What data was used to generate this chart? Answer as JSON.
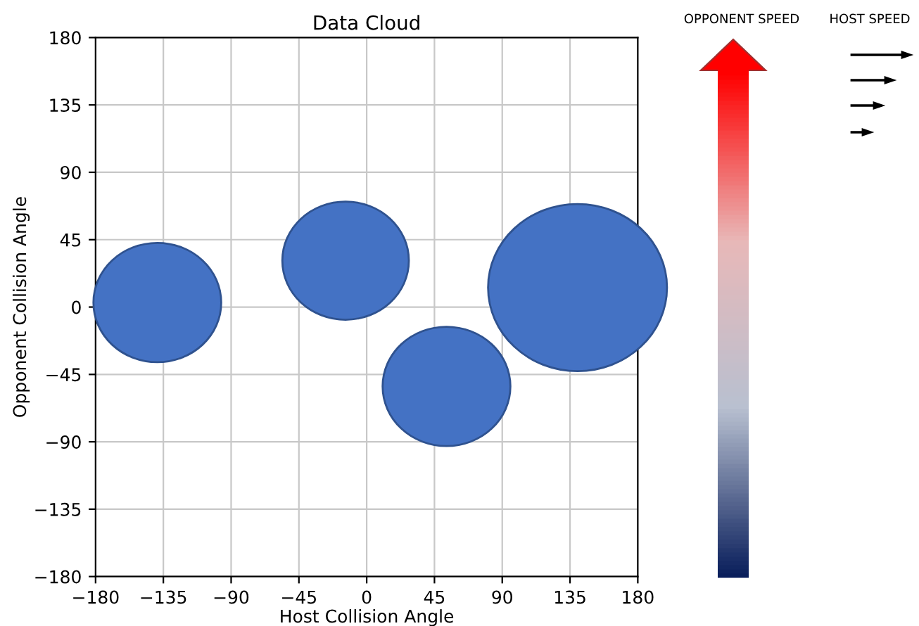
{
  "chart_data": {
    "type": "bubble",
    "title": "Data Cloud",
    "xlabel": "Host Collision Angle",
    "ylabel": "Opponent Collision Angle",
    "x": [
      -139,
      -14,
      53,
      140
    ],
    "series": [
      {
        "color": "#4472c4",
        "values": [
          3,
          31,
          -53,
          13
        ],
        "sizes": [
          0.51,
          0.5,
          0.51,
          1
        ]
      }
    ],
    "xlim": [
      -180,
      180
    ],
    "ylim": [
      -180,
      180
    ],
    "xticks": [
      -180,
      -135,
      -90,
      -45,
      0,
      45,
      90,
      135,
      180
    ],
    "yticks": [
      -180,
      -135,
      -90,
      -45,
      0,
      45,
      90,
      135,
      180
    ],
    "grid": true,
    "annotations": [
      "OPPONENT SPEED",
      "HOST SPEED"
    ]
  }
}
